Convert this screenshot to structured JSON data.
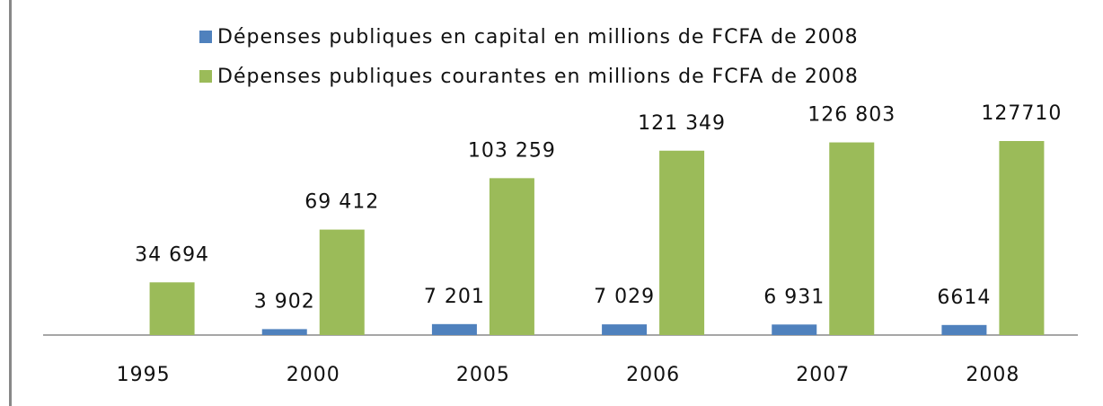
{
  "chart_data": {
    "type": "bar",
    "categories": [
      "1995",
      "2000",
      "2005",
      "2006",
      "2007",
      "2008"
    ],
    "series": [
      {
        "name": "Dépenses publiques en capital en millions de FCFA de 2008",
        "color": "#4f81bd",
        "values": [
          null,
          3902,
          7201,
          7029,
          6931,
          6614
        ],
        "value_labels": [
          null,
          "3 902",
          "7 201",
          "7 029",
          "6 931",
          "6614"
        ]
      },
      {
        "name": "Dépenses publiques courantes en millions de FCFA de 2008",
        "color": "#9bbb59",
        "values": [
          34694,
          69412,
          103259,
          121349,
          126803,
          127710
        ],
        "value_labels": [
          "34 694",
          "69 412",
          "103 259",
          "121 349",
          "126 803",
          "127710"
        ]
      }
    ]
  }
}
